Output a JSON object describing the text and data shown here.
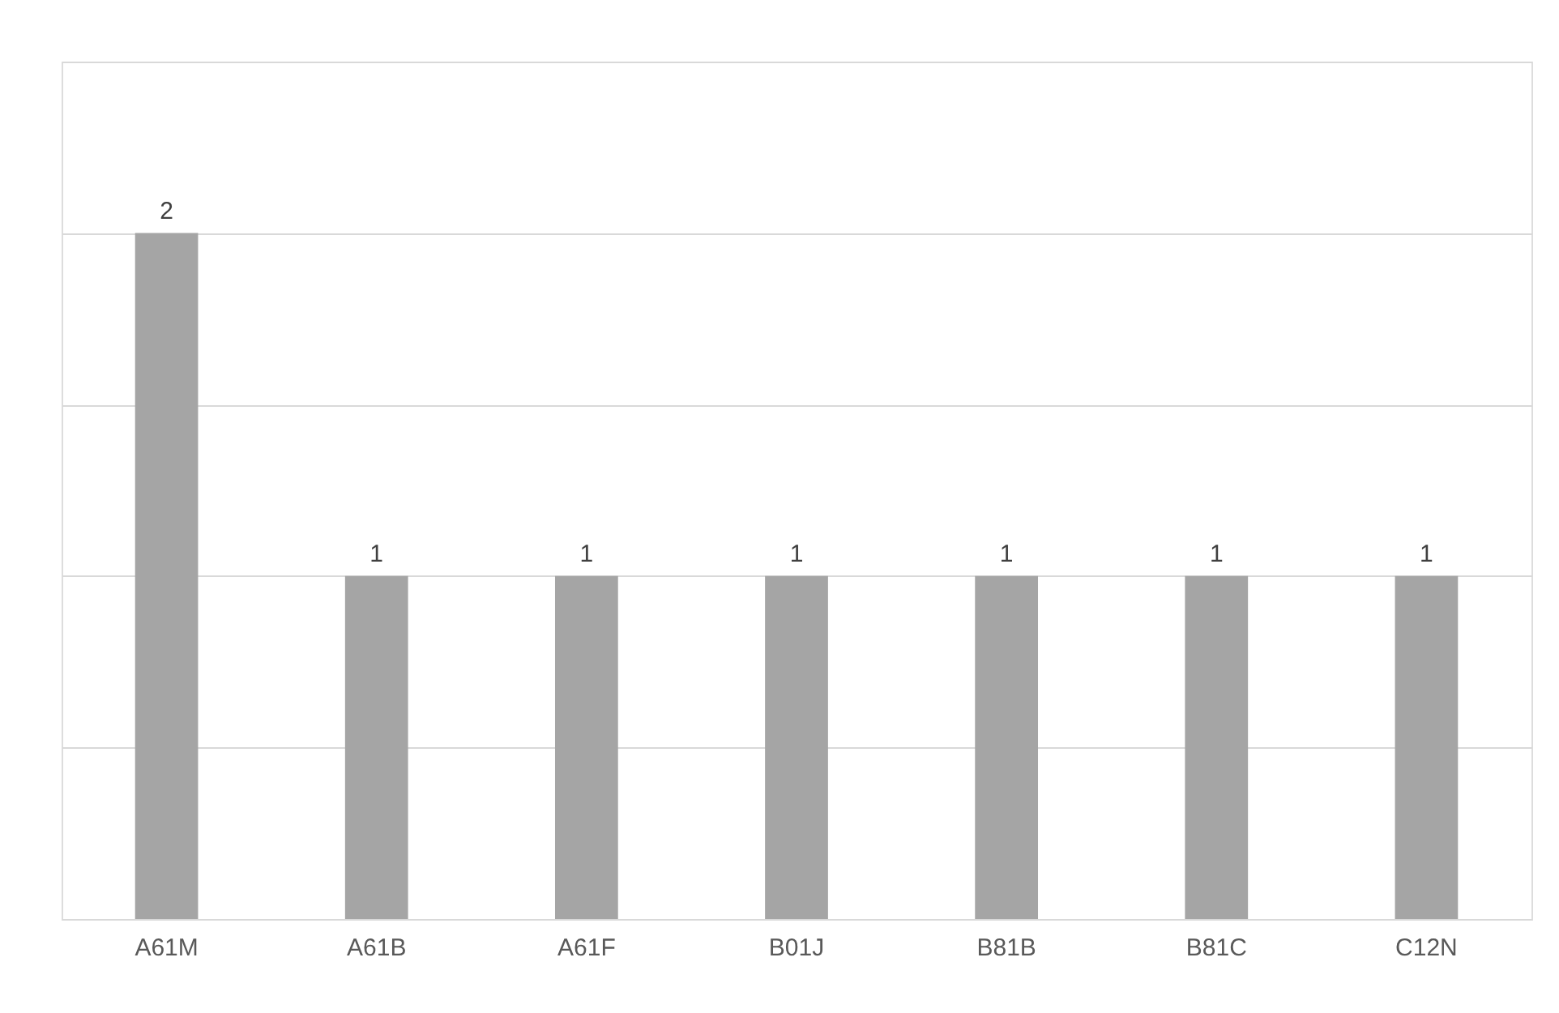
{
  "chart_data": {
    "type": "bar",
    "categories": [
      "A61M",
      "A61B",
      "A61F",
      "B01J",
      "B81B",
      "B81C",
      "C12N"
    ],
    "values": [
      2,
      1,
      1,
      1,
      1,
      1,
      1
    ],
    "color": "#a5a5a5",
    "ylim": [
      0,
      2.5
    ],
    "yticks": [
      {
        "value": 0,
        "label": null
      },
      {
        "value": 0.5,
        "label": null
      },
      {
        "value": 1,
        "label": null
      },
      {
        "value": 1.5,
        "label": null
      },
      {
        "value": 2,
        "label": null
      },
      {
        "value": 2.5,
        "label": null
      }
    ],
    "grid": "y",
    "tick_labels": "x",
    "data_labels": true
  }
}
